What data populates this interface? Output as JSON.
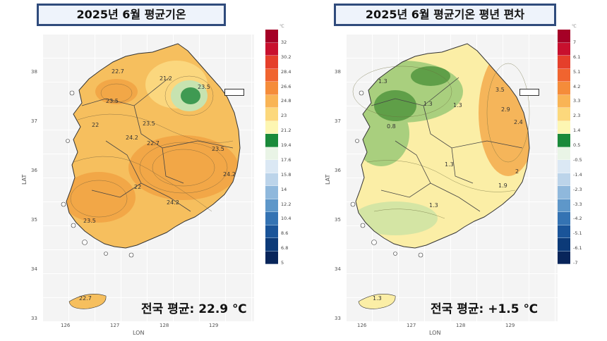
{
  "left_map": {
    "title": "2025년 6월 평균기온",
    "national_average": "전국 평균: 22.9 ℃",
    "legend": {
      "unit": "℃",
      "ticks": [
        "32",
        "30.2",
        "28.4",
        "26.6",
        "24.8",
        "23",
        "21.2",
        "19.4",
        "17.6",
        "15.8",
        "14",
        "12.2",
        "10.4",
        "8.6",
        "6.8",
        "5"
      ],
      "colors": [
        "#a50026",
        "#c8102e",
        "#e53f2b",
        "#f0642f",
        "#f58c3a",
        "#f9b455",
        "#fcd87c",
        "#fdf6b2",
        "#1a8a3a",
        "#e9f4e6",
        "#dbe8f4",
        "#bcd4ea",
        "#8fb8dc",
        "#5e97c9",
        "#3473b3",
        "#1a5499",
        "#0c3a78",
        "#08255a"
      ]
    },
    "contour_labels": [
      "22.7",
      "21.2",
      "23.5",
      "23.5",
      "24.2",
      "22.7",
      "23.5",
      "22",
      "24.2",
      "24.2",
      "23.5",
      "22",
      "23.5",
      "22.7"
    ],
    "fill_colors": {
      "base": "#f6bf5e",
      "warm": "#f2a747",
      "cool_core": "#3f9a52",
      "cool_ring": "#c7e3b0",
      "mild": "#fbd77e"
    }
  },
  "right_map": {
    "title": "2025년 6월 평균기온  평년 편차",
    "national_average": "전국 평균: +1.5 ℃",
    "legend": {
      "unit": "℃",
      "ticks": [
        "7",
        "6.1",
        "5.1",
        "4.2",
        "3.3",
        "2.3",
        "1.4",
        "0.5",
        "-0.5",
        "-1.4",
        "-2.3",
        "-3.3",
        "-4.2",
        "-5.1",
        "-6.1",
        "-7"
      ],
      "colors": [
        "#a50026",
        "#c8102e",
        "#e53f2b",
        "#f0642f",
        "#f58c3a",
        "#f9b455",
        "#fcd87c",
        "#fdf6b2",
        "#1a8a3a",
        "#e9f4e6",
        "#dbe8f4",
        "#bcd4ea",
        "#8fb8dc",
        "#5e97c9",
        "#3473b3",
        "#1a5499",
        "#0c3a78",
        "#08255a"
      ]
    },
    "contour_labels": [
      "1.3",
      "1.3",
      "1.3",
      "3.5",
      "2.9",
      "2.4",
      "0.8",
      "1.3",
      "2",
      "1.9",
      "1.3",
      "1.3"
    ],
    "fill_colors": {
      "base": "#fbeea6",
      "warm": "#f5b55a",
      "green": "#a9cf7e",
      "dark_green": "#5f9f48",
      "light_green": "#d4e5a4"
    }
  },
  "axes": {
    "x_ticks": [
      "126",
      "127",
      "128",
      "129"
    ],
    "y_ticks": [
      "38",
      "37",
      "36",
      "35",
      "34",
      "33"
    ],
    "xlabel": "LON",
    "ylabel": "LAT"
  }
}
